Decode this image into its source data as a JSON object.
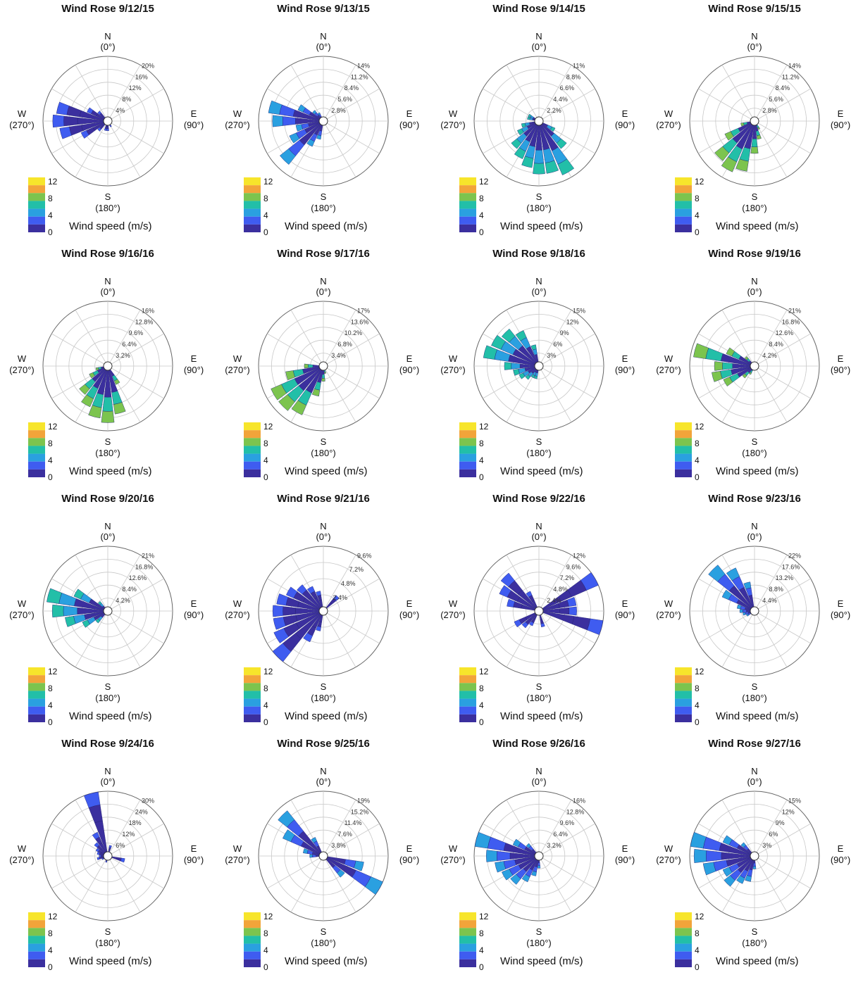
{
  "colors": {
    "bins": [
      "#3b2f9e",
      "#3f5cf0",
      "#2aa0e0",
      "#22bfa8",
      "#7cc44e",
      "#f2a43a",
      "#f7e52b"
    ],
    "grid": "#c8c8c8",
    "axis": "#666666"
  },
  "common": {
    "compass": {
      "n": "N",
      "n_deg": "(0°)",
      "e": "E",
      "e_deg": "(90°)",
      "s": "S",
      "s_deg": "(180°)",
      "w": "W",
      "w_deg": "(270°)"
    },
    "colorbar_ticks": [
      "12",
      "8",
      "4",
      "0"
    ],
    "colorbar_label": "Wind speed (m/s)"
  },
  "chart_data": [
    {
      "type": "wind-rose",
      "title": "Wind Rose 9/12/15",
      "rlabels": [
        "4%",
        "8%",
        "12%",
        "16%",
        "20%"
      ],
      "rmax": 20,
      "petals": [
        [
          225,
          4
        ],
        [
          240,
          9
        ],
        [
          255,
          15
        ],
        [
          270,
          17
        ],
        [
          285,
          16
        ],
        [
          300,
          7
        ],
        [
          315,
          4
        ],
        [
          180,
          3
        ],
        [
          195,
          3
        ],
        [
          150,
          2
        ]
      ],
      "color_bin": 0
    },
    {
      "type": "wind-rose",
      "title": "Wind Rose 9/13/15",
      "rlabels": [
        "2.8%",
        "5.6%",
        "8.4%",
        "11.2%",
        "14%"
      ],
      "rmax": 14,
      "petals": [
        [
          210,
          6
        ],
        [
          225,
          12
        ],
        [
          240,
          8
        ],
        [
          255,
          6
        ],
        [
          270,
          11
        ],
        [
          285,
          12
        ],
        [
          300,
          6
        ],
        [
          315,
          3
        ],
        [
          195,
          4
        ],
        [
          330,
          2
        ]
      ],
      "color_bin": 1
    },
    {
      "type": "wind-rose",
      "title": "Wind Rose 9/14/15",
      "rlabels": [
        "2.2%",
        "4.4%",
        "6.6%",
        "8.8%",
        "11%"
      ],
      "rmax": 11,
      "petals": [
        [
          120,
          3
        ],
        [
          135,
          6
        ],
        [
          150,
          10
        ],
        [
          165,
          9
        ],
        [
          180,
          9
        ],
        [
          195,
          8
        ],
        [
          210,
          7
        ],
        [
          225,
          6
        ],
        [
          240,
          4
        ],
        [
          255,
          3
        ],
        [
          285,
          2
        ],
        [
          300,
          2
        ]
      ],
      "color_bin": 2
    },
    {
      "type": "wind-rose",
      "title": "Wind Rose 9/15/15",
      "rlabels": [
        "2.8%",
        "5.6%",
        "8.4%",
        "11.2%",
        "14%"
      ],
      "rmax": 14,
      "petals": [
        [
          195,
          11
        ],
        [
          210,
          12
        ],
        [
          225,
          11
        ],
        [
          240,
          7
        ],
        [
          180,
          7
        ],
        [
          165,
          4
        ],
        [
          150,
          2
        ],
        [
          255,
          3
        ]
      ],
      "color_bin": 3
    },
    {
      "type": "wind-rose",
      "title": "Wind Rose 9/16/16",
      "rlabels": [
        "3.2%",
        "6.4%",
        "9.6%",
        "12.8%",
        "16%"
      ],
      "rmax": 16,
      "petals": [
        [
          165,
          12
        ],
        [
          180,
          14
        ],
        [
          195,
          13
        ],
        [
          210,
          11
        ],
        [
          225,
          9
        ],
        [
          240,
          5
        ],
        [
          150,
          5
        ],
        [
          255,
          3
        ]
      ],
      "color_bin": 3
    },
    {
      "type": "wind-rose",
      "title": "Wind Rose 9/17/16",
      "rlabels": [
        "3.4%",
        "6.8%",
        "10.2%",
        "13.6%",
        "17%"
      ],
      "rmax": 17,
      "petals": [
        [
          210,
          14
        ],
        [
          225,
          15
        ],
        [
          240,
          15
        ],
        [
          255,
          10
        ],
        [
          195,
          8
        ],
        [
          180,
          4
        ],
        [
          270,
          5
        ],
        [
          165,
          2
        ]
      ],
      "color_bin": 3
    },
    {
      "type": "wind-rose",
      "title": "Wind Rose 9/18/16",
      "rlabels": [
        "3%",
        "6%",
        "9%",
        "12%",
        "15%"
      ],
      "rmax": 15,
      "petals": [
        [
          285,
          13
        ],
        [
          300,
          12
        ],
        [
          315,
          11
        ],
        [
          330,
          9
        ],
        [
          345,
          5
        ],
        [
          270,
          8
        ],
        [
          255,
          6
        ],
        [
          240,
          5
        ],
        [
          225,
          4
        ],
        [
          210,
          3
        ],
        [
          195,
          3
        ]
      ],
      "color_bin": 2
    },
    {
      "type": "wind-rose",
      "title": "Wind Rose 9/19/16",
      "rlabels": [
        "4.2%",
        "8.4%",
        "12.6%",
        "16.8%",
        "21%"
      ],
      "rmax": 21,
      "petals": [
        [
          285,
          20
        ],
        [
          300,
          10
        ],
        [
          270,
          13
        ],
        [
          255,
          14
        ],
        [
          240,
          11
        ],
        [
          225,
          5
        ],
        [
          315,
          4
        ],
        [
          210,
          3
        ]
      ],
      "color_bin": 3
    },
    {
      "type": "wind-rose",
      "title": "Wind Rose 9/20/16",
      "rlabels": [
        "4.2%",
        "8.4%",
        "12.6%",
        "16.8%",
        "21%"
      ],
      "rmax": 21,
      "petals": [
        [
          285,
          20
        ],
        [
          270,
          18
        ],
        [
          255,
          14
        ],
        [
          240,
          9
        ],
        [
          300,
          12
        ],
        [
          225,
          5
        ],
        [
          315,
          4
        ]
      ],
      "color_bin": 2
    },
    {
      "type": "wind-rose",
      "title": "Wind Rose 9/21/16",
      "rlabels": [
        "2.4%",
        "4.8%",
        "7.2%",
        "9.6%"
      ],
      "rmax": 9.6,
      "petals": [
        [
          225,
          9.6
        ],
        [
          240,
          8
        ],
        [
          255,
          7.5
        ],
        [
          270,
          7.5
        ],
        [
          285,
          7
        ],
        [
          300,
          6
        ],
        [
          315,
          5
        ],
        [
          330,
          4
        ],
        [
          345,
          3
        ],
        [
          210,
          5
        ],
        [
          195,
          3
        ],
        [
          45,
          3
        ]
      ],
      "color_bin": 0
    },
    {
      "type": "wind-rose",
      "title": "Wind Rose 9/22/16",
      "rlabels": [
        "2.4%",
        "4.8%",
        "7.2%",
        "9.6%",
        "12%"
      ],
      "rmax": 12,
      "petals": [
        [
          60,
          12
        ],
        [
          75,
          7
        ],
        [
          105,
          12.5
        ],
        [
          90,
          7
        ],
        [
          300,
          8
        ],
        [
          315,
          9
        ],
        [
          285,
          6
        ],
        [
          330,
          4
        ],
        [
          240,
          5
        ],
        [
          225,
          4
        ],
        [
          210,
          3
        ],
        [
          165,
          3
        ]
      ],
      "color_bin": 0
    },
    {
      "type": "wind-rose",
      "title": "Wind Rose 9/23/16",
      "rlabels": [
        "4.4%",
        "8.8%",
        "13.2%",
        "17.6%",
        "22%"
      ],
      "rmax": 22,
      "petals": [
        [
          315,
          20
        ],
        [
          330,
          16
        ],
        [
          300,
          12
        ],
        [
          345,
          10
        ],
        [
          285,
          6
        ],
        [
          270,
          5
        ],
        [
          255,
          4
        ],
        [
          240,
          3
        ]
      ],
      "color_bin": 1
    },
    {
      "type": "wind-rose",
      "title": "Wind Rose 9/24/16",
      "rlabels": [
        "6%",
        "12%",
        "18%",
        "24%",
        "30%"
      ],
      "rmax": 30,
      "petals": [
        [
          345,
          31
        ],
        [
          330,
          12
        ],
        [
          315,
          8
        ],
        [
          300,
          6
        ],
        [
          285,
          5
        ],
        [
          270,
          4
        ],
        [
          255,
          5
        ],
        [
          240,
          3
        ],
        [
          105,
          8
        ],
        [
          195,
          3
        ],
        [
          15,
          5
        ]
      ],
      "color_bin": 0
    },
    {
      "type": "wind-rose",
      "title": "Wind Rose 9/25/16",
      "rlabels": [
        "3.8%",
        "7.6%",
        "11.4%",
        "15.2%",
        "19%"
      ],
      "rmax": 19,
      "petals": [
        [
          120,
          19
        ],
        [
          105,
          12
        ],
        [
          135,
          8
        ],
        [
          315,
          17
        ],
        [
          300,
          13
        ],
        [
          285,
          6
        ],
        [
          330,
          6
        ],
        [
          270,
          4
        ]
      ],
      "color_bin": 1
    },
    {
      "type": "wind-rose",
      "title": "Wind Rose 9/26/16",
      "rlabels": [
        "3.2%",
        "6.4%",
        "9.6%",
        "12.8%",
        "16%"
      ],
      "rmax": 16,
      "petals": [
        [
          285,
          16
        ],
        [
          270,
          13
        ],
        [
          255,
          11
        ],
        [
          240,
          10
        ],
        [
          225,
          9
        ],
        [
          210,
          7
        ],
        [
          195,
          5
        ],
        [
          300,
          7
        ],
        [
          315,
          4
        ],
        [
          180,
          3
        ]
      ],
      "color_bin": 1
    },
    {
      "type": "wind-rose",
      "title": "Wind Rose 9/27/16",
      "rlabels": [
        "3%",
        "6%",
        "9%",
        "12%",
        "15%"
      ],
      "rmax": 15,
      "petals": [
        [
          285,
          15
        ],
        [
          270,
          14
        ],
        [
          255,
          12
        ],
        [
          300,
          8
        ],
        [
          240,
          8
        ],
        [
          225,
          9
        ],
        [
          210,
          7
        ],
        [
          195,
          6
        ],
        [
          315,
          4
        ],
        [
          180,
          3
        ]
      ],
      "color_bin": 1
    }
  ]
}
